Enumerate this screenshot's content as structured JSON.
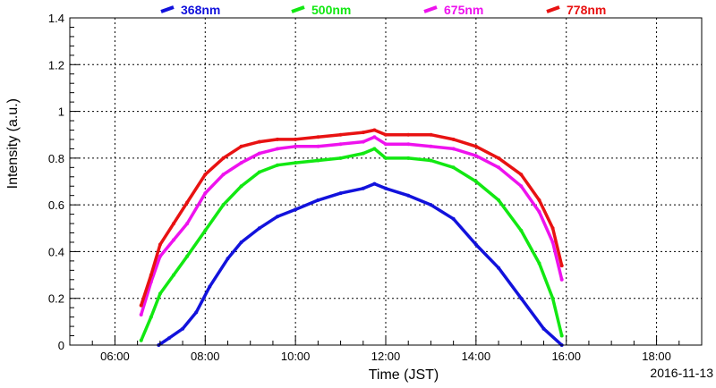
{
  "date_label": "2016-11-13",
  "colors": {
    "368nm": "#1212dc",
    "500nm": "#12e812",
    "675nm": "#ee12ee",
    "778nm": "#e81212"
  },
  "chart_data": {
    "type": "scatter",
    "xlabel": "Time (JST)",
    "ylabel": "Intensity (a.u.)",
    "x_unit": "hours (JST)",
    "xlim": [
      5.0,
      19.0
    ],
    "ylim": [
      0,
      1.4
    ],
    "x_ticks": [
      6,
      8,
      10,
      12,
      14,
      16,
      18
    ],
    "x_tick_labels": [
      "06:00",
      "08:00",
      "10:00",
      "12:00",
      "14:00",
      "16:00",
      "18:00"
    ],
    "y_ticks": [
      0,
      0.2,
      0.4,
      0.6,
      0.8,
      1.0,
      1.2,
      1.4
    ],
    "y_tick_labels": [
      "0",
      "0.2",
      "0.4",
      "0.6",
      "0.8",
      "1",
      "1.2",
      "1.4"
    ],
    "grid": true,
    "legend_position": "top",
    "series": [
      {
        "name": "368nm",
        "x": [
          6.97,
          7.2,
          7.5,
          7.8,
          8.1,
          8.5,
          8.8,
          9.2,
          9.6,
          10.0,
          10.5,
          11.0,
          11.5,
          11.75,
          12.0,
          12.5,
          13.0,
          13.5,
          14.0,
          14.5,
          15.0,
          15.5,
          15.9
        ],
        "y": [
          0.0,
          0.03,
          0.07,
          0.14,
          0.25,
          0.37,
          0.44,
          0.5,
          0.55,
          0.58,
          0.62,
          0.65,
          0.67,
          0.69,
          0.67,
          0.64,
          0.6,
          0.54,
          0.43,
          0.33,
          0.2,
          0.07,
          0.0
        ]
      },
      {
        "name": "500nm",
        "x": [
          6.58,
          6.8,
          7.0,
          7.3,
          7.6,
          8.0,
          8.4,
          8.8,
          9.2,
          9.6,
          10.0,
          10.5,
          11.0,
          11.5,
          11.75,
          12.0,
          12.5,
          13.0,
          13.5,
          14.0,
          14.5,
          15.0,
          15.4,
          15.7,
          15.9
        ],
        "y": [
          0.02,
          0.12,
          0.22,
          0.3,
          0.38,
          0.49,
          0.6,
          0.68,
          0.74,
          0.77,
          0.78,
          0.79,
          0.8,
          0.82,
          0.84,
          0.8,
          0.8,
          0.79,
          0.76,
          0.7,
          0.62,
          0.49,
          0.35,
          0.2,
          0.04
        ]
      },
      {
        "name": "675nm",
        "x": [
          6.58,
          6.8,
          7.0,
          7.3,
          7.6,
          8.0,
          8.4,
          8.8,
          9.2,
          9.6,
          10.0,
          10.5,
          11.0,
          11.5,
          11.75,
          12.0,
          12.5,
          13.0,
          13.5,
          14.0,
          14.5,
          15.0,
          15.4,
          15.7,
          15.9
        ],
        "y": [
          0.13,
          0.27,
          0.38,
          0.45,
          0.52,
          0.65,
          0.73,
          0.78,
          0.82,
          0.84,
          0.85,
          0.85,
          0.86,
          0.87,
          0.89,
          0.86,
          0.86,
          0.85,
          0.84,
          0.81,
          0.76,
          0.68,
          0.57,
          0.44,
          0.28
        ]
      },
      {
        "name": "778nm",
        "x": [
          6.58,
          6.8,
          7.0,
          7.3,
          7.6,
          8.0,
          8.4,
          8.8,
          9.2,
          9.6,
          10.0,
          10.5,
          11.0,
          11.5,
          11.75,
          12.0,
          12.5,
          13.0,
          13.5,
          14.0,
          14.5,
          15.0,
          15.4,
          15.7,
          15.9
        ],
        "y": [
          0.17,
          0.3,
          0.43,
          0.52,
          0.61,
          0.73,
          0.8,
          0.85,
          0.87,
          0.88,
          0.88,
          0.89,
          0.9,
          0.91,
          0.92,
          0.9,
          0.9,
          0.9,
          0.88,
          0.85,
          0.8,
          0.73,
          0.62,
          0.5,
          0.34
        ]
      }
    ]
  }
}
